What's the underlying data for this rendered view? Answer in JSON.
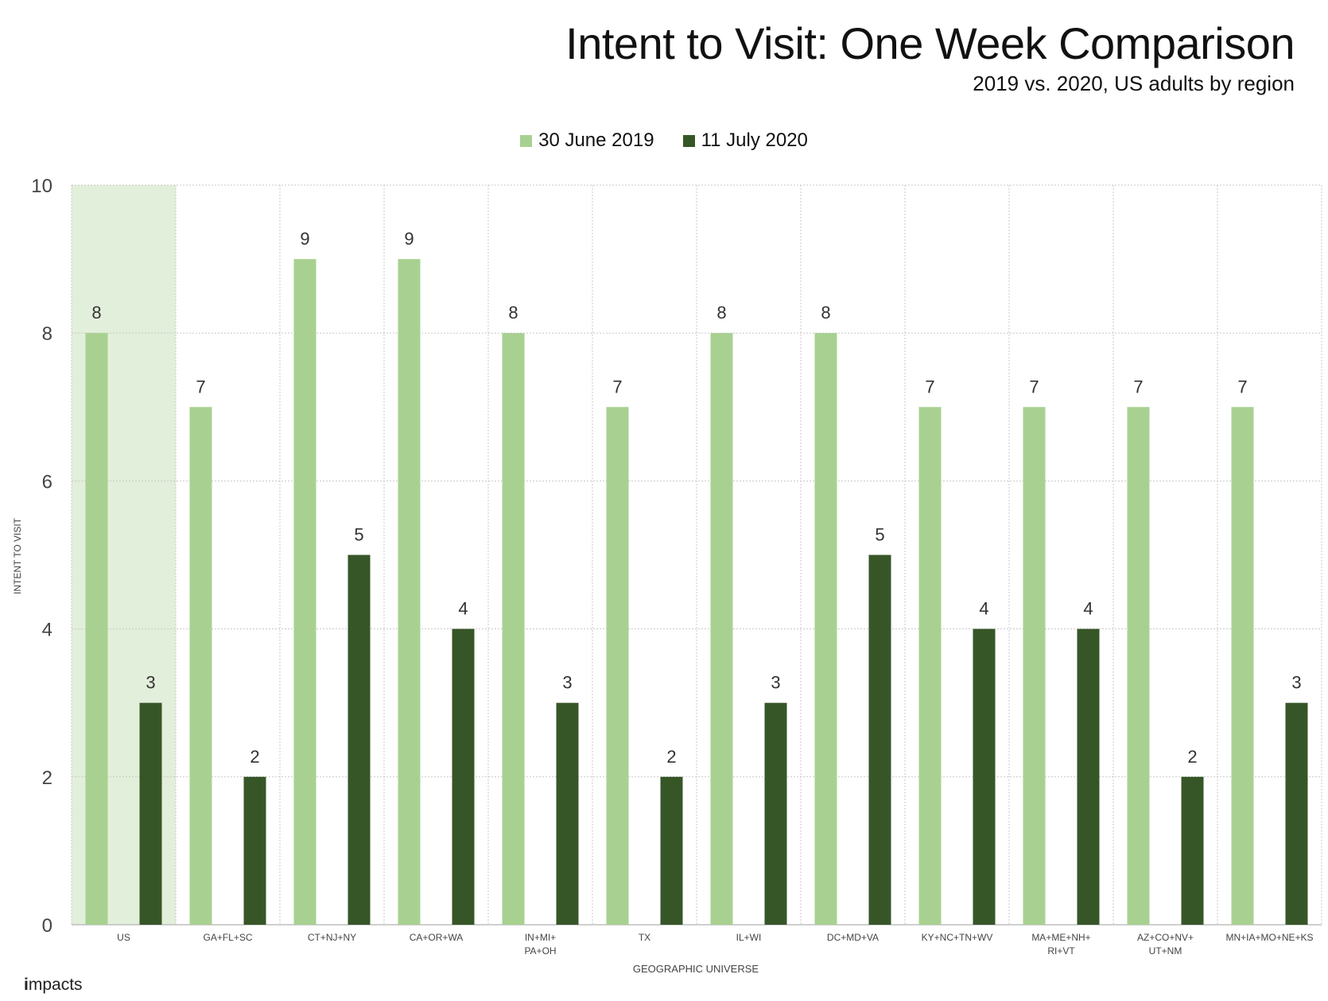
{
  "title": "Intent to Visit: One Week Comparison",
  "subtitle": "2019 vs. 2020, US adults by region",
  "brand": {
    "mark": "i",
    "text": "mpacts"
  },
  "colors": {
    "series_2019": "#a8d191",
    "series_2020": "#375628",
    "highlight": "#e2efda",
    "grid": "#c8c8c8",
    "axis_text": "#444444"
  },
  "chart_data": {
    "type": "bar",
    "title": "Intent to Visit: One Week Comparison",
    "subtitle": "2019 vs. 2020, US adults by region",
    "xlabel": "GEOGRAPHIC UNIVERSE",
    "ylabel": "INTENT TO VISIT",
    "ylim": [
      0,
      10
    ],
    "yticks": [
      0,
      2,
      4,
      6,
      8,
      10
    ],
    "grid": true,
    "legend_position": "top",
    "highlighted_category": "US",
    "categories": [
      [
        "US"
      ],
      [
        "GA+FL+SC"
      ],
      [
        "CT+NJ+NY"
      ],
      [
        "CA+OR+WA"
      ],
      [
        "IN+MI+",
        "PA+OH"
      ],
      [
        "TX"
      ],
      [
        "IL+WI"
      ],
      [
        "DC+MD+VA"
      ],
      [
        "KY+NC+TN+WV"
      ],
      [
        "MA+ME+NH+",
        "RI+VT"
      ],
      [
        "AZ+CO+NV+",
        "UT+NM"
      ],
      [
        "MN+IA+MO+NE+KS"
      ]
    ],
    "series": [
      {
        "name": "30 June 2019",
        "color": "#a8d191",
        "values": [
          8,
          7,
          9,
          9,
          8,
          7,
          8,
          8,
          7,
          7,
          7,
          7
        ]
      },
      {
        "name": "11 July 2020",
        "color": "#375628",
        "values": [
          3,
          2,
          5,
          4,
          3,
          2,
          3,
          5,
          4,
          4,
          2,
          3
        ]
      }
    ]
  }
}
